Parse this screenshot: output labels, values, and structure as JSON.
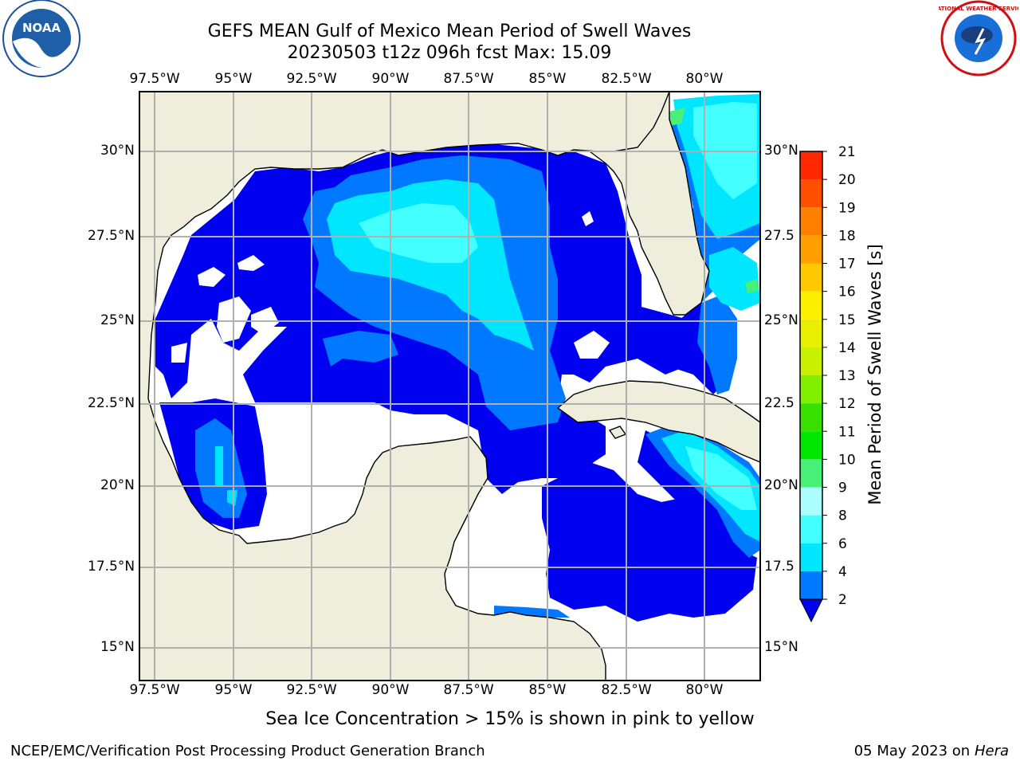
{
  "title_line1": "GEFS MEAN Gulf of Mexico Mean Period of Swell Waves",
  "title_line2": "20230503 t12z 096h fcst   Max: 15.09",
  "lon_ticks": [
    "97.5°W",
    "95°W",
    "92.5°W",
    "90°W",
    "87.5°W",
    "85°W",
    "82.5°W",
    "80°W"
  ],
  "lat_ticks_left": [
    "30°N",
    "27.5°N",
    "25°N",
    "22.5°N",
    "20°N",
    "17.5°N",
    "15°N"
  ],
  "lat_ticks_right": [
    "30°N",
    "27.5",
    "25°N",
    "22.5",
    "20°N",
    "17.5",
    "15°N"
  ],
  "colorbar": {
    "label": "Mean Period of Swell Waves [s]",
    "ticks": [
      "2",
      "4",
      "6",
      "8",
      "9",
      "10",
      "11",
      "12",
      "13",
      "14",
      "15",
      "16",
      "17",
      "18",
      "19",
      "20",
      "21"
    ],
    "colors": [
      "#0000f0",
      "#0078ff",
      "#00e6ff",
      "#44ffff",
      "#aaffff",
      "#48f078",
      "#00e600",
      "#38e000",
      "#80f000",
      "#c8f000",
      "#e8f000",
      "#fff000",
      "#ffc800",
      "#ffa000",
      "#ff8000",
      "#ff5000",
      "#ff2800",
      "#ff0000"
    ]
  },
  "note": "Sea Ice Concentration > 15% is shown in pink to yellow",
  "footer_left": "NCEP/EMC/Verification Post Processing Product Generation Branch",
  "footer_date": "05 May 2023 on",
  "footer_host": "Hera",
  "logos": {
    "left": "NOAA",
    "right": "NATIONAL WEATHER SERVICE"
  },
  "colors": {
    "land": "#efeedc",
    "grid": "#b0b0b0",
    "ocean_white": "#ffffff"
  }
}
